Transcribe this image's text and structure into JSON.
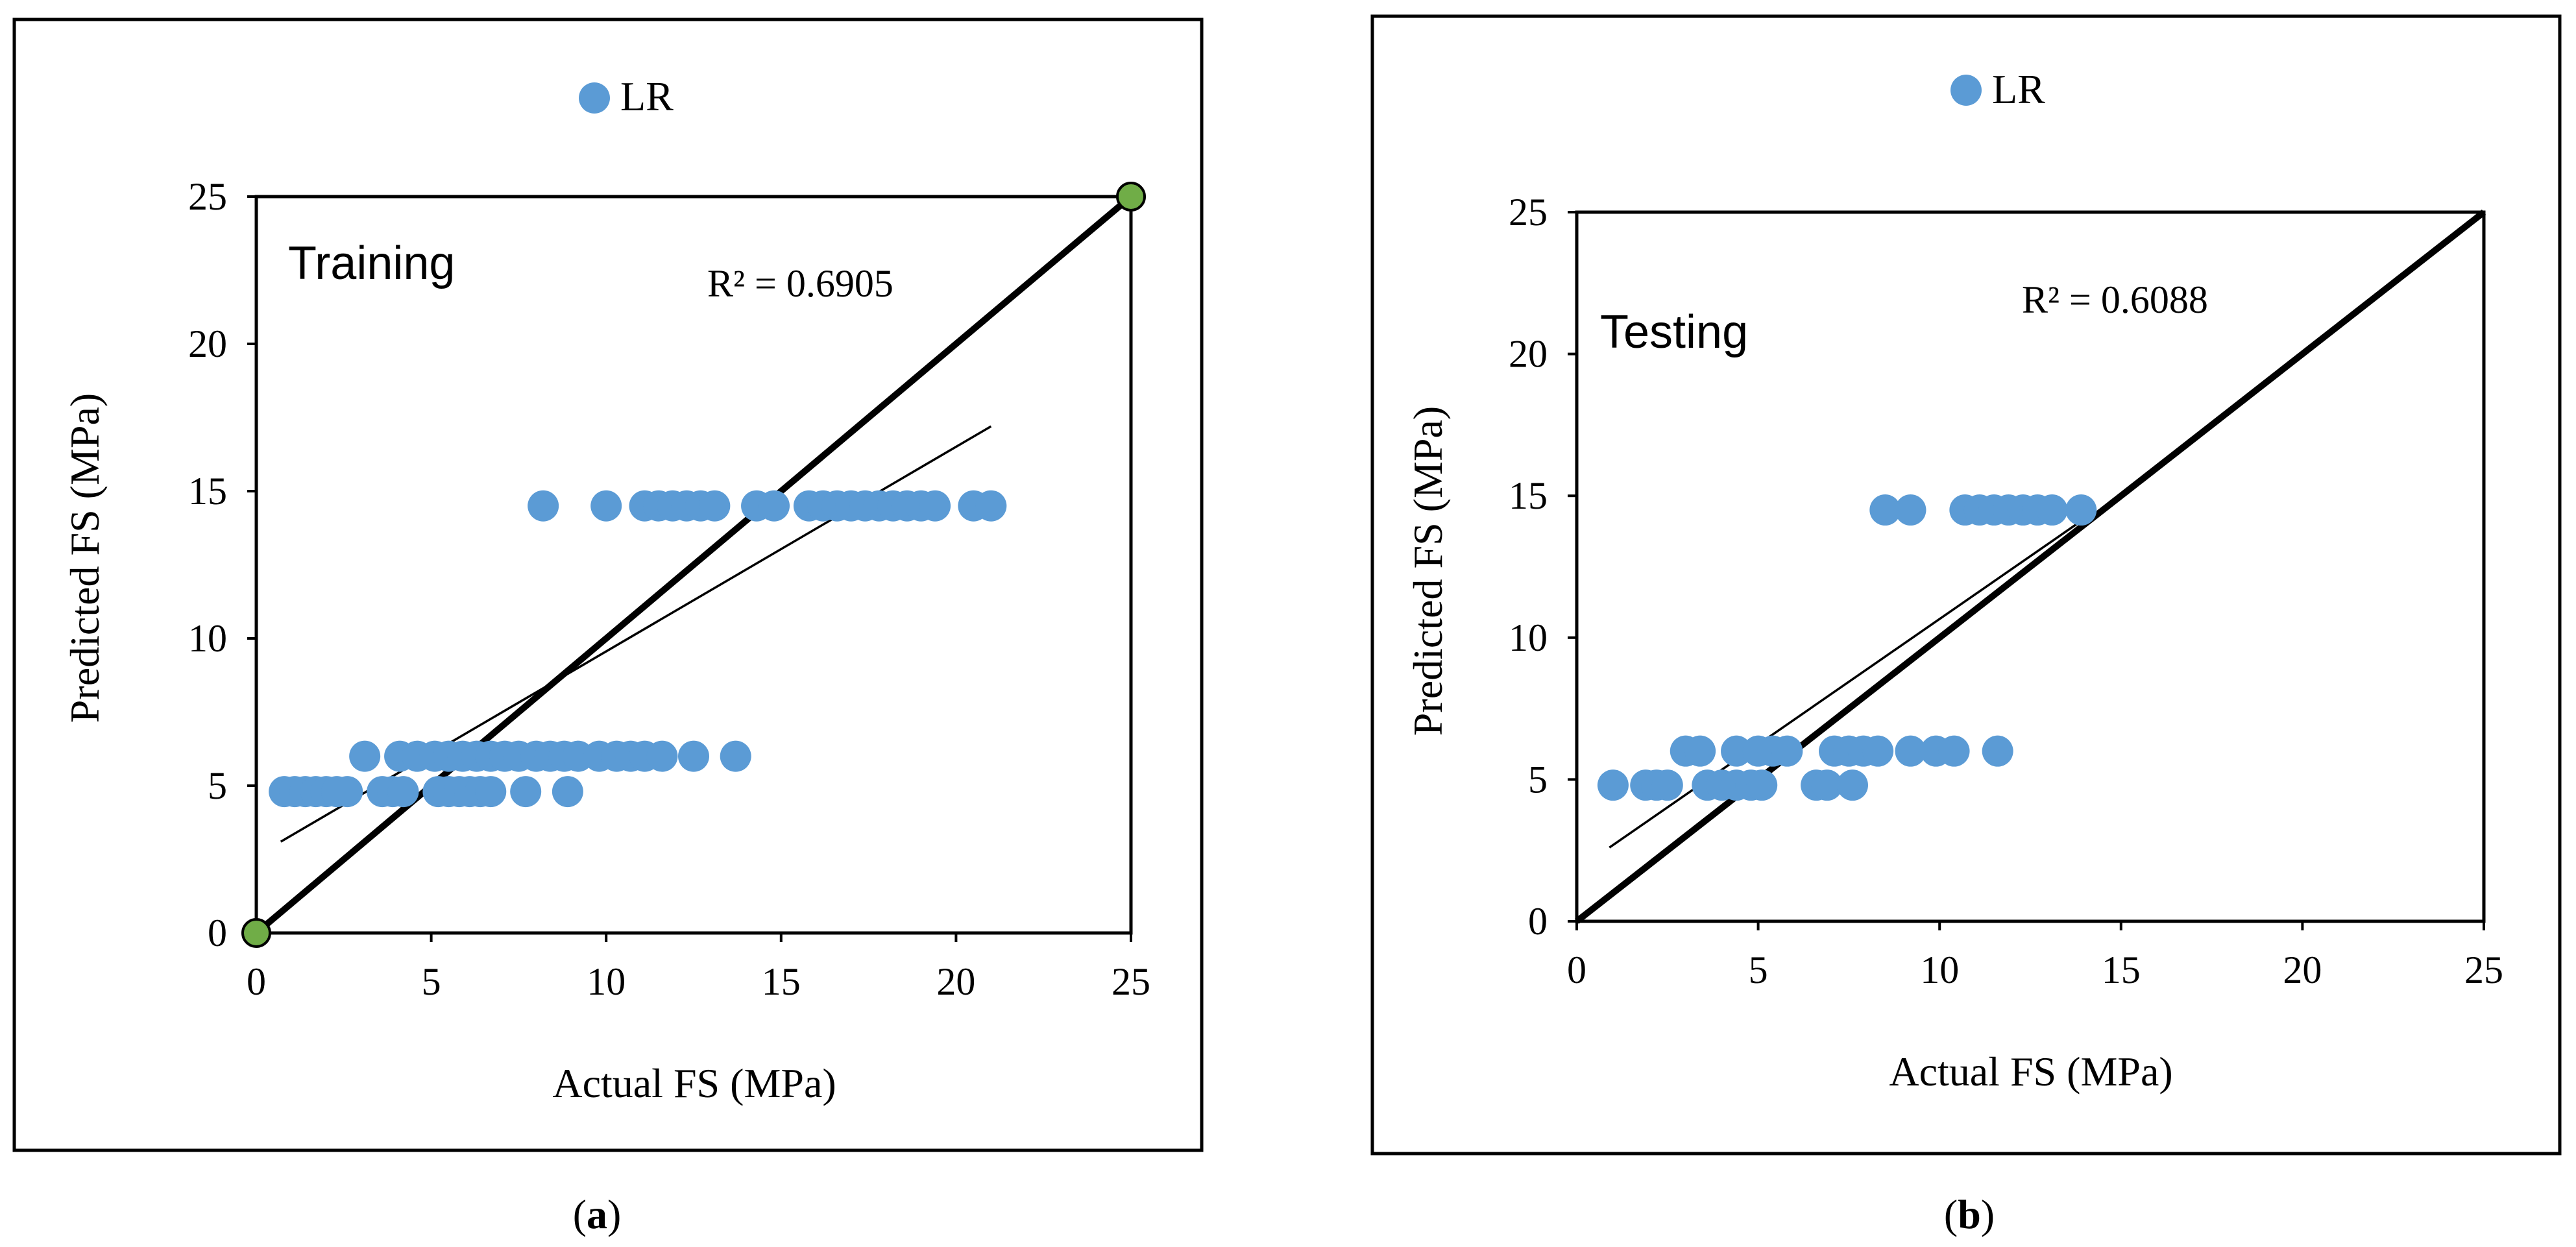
{
  "figure": {
    "colors": {
      "point": "#5b9bd5",
      "axis": "#000000",
      "endpoint": "#70ad47",
      "background": "#ffffff"
    },
    "font_sizes": {
      "tick": 60,
      "axis_label": 64,
      "legend": 64,
      "annotation": 60,
      "region": 72,
      "caption": 64
    }
  },
  "chart_data": [
    {
      "type": "scatter",
      "panel": "a",
      "caption_letter": "a",
      "legend": "LR",
      "region_label": "Training",
      "annotation": "R² = 0.6905",
      "xlabel": "Actual FS (MPa)",
      "ylabel": "Predicted FS (MPa)",
      "xlim": [
        0,
        25
      ],
      "ylim": [
        0,
        25
      ],
      "xticks": [
        "0",
        "5",
        "10",
        "15",
        "20",
        "25"
      ],
      "yticks": [
        "0",
        "5",
        "10",
        "15",
        "20",
        "25"
      ],
      "series": [
        {
          "name": "LR",
          "points": [
            [
              0.8,
              4.8
            ],
            [
              1.1,
              4.8
            ],
            [
              1.4,
              4.8
            ],
            [
              1.7,
              4.8
            ],
            [
              2.0,
              4.8
            ],
            [
              2.3,
              4.8
            ],
            [
              2.6,
              4.8
            ],
            [
              3.6,
              4.8
            ],
            [
              3.9,
              4.8
            ],
            [
              4.2,
              4.8
            ],
            [
              5.2,
              4.8
            ],
            [
              5.5,
              4.8
            ],
            [
              5.8,
              4.8
            ],
            [
              6.1,
              4.8
            ],
            [
              6.4,
              4.8
            ],
            [
              6.7,
              4.8
            ],
            [
              7.7,
              4.8
            ],
            [
              8.9,
              4.8
            ],
            [
              3.1,
              6.0
            ],
            [
              4.1,
              6.0
            ],
            [
              4.6,
              6.0
            ],
            [
              5.1,
              6.0
            ],
            [
              5.5,
              6.0
            ],
            [
              5.9,
              6.0
            ],
            [
              6.3,
              6.0
            ],
            [
              6.7,
              6.0
            ],
            [
              7.1,
              6.0
            ],
            [
              7.5,
              6.0
            ],
            [
              8.0,
              6.0
            ],
            [
              8.4,
              6.0
            ],
            [
              8.8,
              6.0
            ],
            [
              9.2,
              6.0
            ],
            [
              9.8,
              6.0
            ],
            [
              10.3,
              6.0
            ],
            [
              10.7,
              6.0
            ],
            [
              11.1,
              6.0
            ],
            [
              11.6,
              6.0
            ],
            [
              12.5,
              6.0
            ],
            [
              13.7,
              6.0
            ],
            [
              8.2,
              14.5
            ],
            [
              10.0,
              14.5
            ],
            [
              11.1,
              14.5
            ],
            [
              11.5,
              14.5
            ],
            [
              11.9,
              14.5
            ],
            [
              12.3,
              14.5
            ],
            [
              12.7,
              14.5
            ],
            [
              13.1,
              14.5
            ],
            [
              14.3,
              14.5
            ],
            [
              14.8,
              14.5
            ],
            [
              15.8,
              14.5
            ],
            [
              16.2,
              14.5
            ],
            [
              16.6,
              14.5
            ],
            [
              17.0,
              14.5
            ],
            [
              17.4,
              14.5
            ],
            [
              17.8,
              14.5
            ],
            [
              18.2,
              14.5
            ],
            [
              18.6,
              14.5
            ],
            [
              19.0,
              14.5
            ],
            [
              19.4,
              14.5
            ],
            [
              20.5,
              14.5
            ],
            [
              21.0,
              14.5
            ]
          ]
        },
        {
          "name": "Ideal (1:1 line)",
          "x": [
            0,
            25
          ],
          "y": [
            0,
            25
          ]
        },
        {
          "name": "Linear trendline",
          "x": [
            0.7,
            21.0
          ],
          "y": [
            3.1,
            17.2
          ]
        }
      ]
    },
    {
      "type": "scatter",
      "panel": "b",
      "caption_letter": "b",
      "legend": "LR",
      "region_label": "Testing",
      "annotation": "R² = 0.6088",
      "xlabel": "Actual FS (MPa)",
      "ylabel": "Predicted  FS (MPa)",
      "xlim": [
        0,
        25
      ],
      "ylim": [
        0,
        25
      ],
      "xticks": [
        "0",
        "5",
        "10",
        "15",
        "20",
        "25"
      ],
      "yticks": [
        "0",
        "5",
        "10",
        "15",
        "20",
        "25"
      ],
      "series": [
        {
          "name": "LR",
          "points": [
            [
              1.0,
              4.8
            ],
            [
              1.9,
              4.8
            ],
            [
              2.2,
              4.8
            ],
            [
              2.5,
              4.8
            ],
            [
              3.6,
              4.8
            ],
            [
              4.0,
              4.8
            ],
            [
              4.4,
              4.8
            ],
            [
              4.8,
              4.8
            ],
            [
              5.1,
              4.8
            ],
            [
              6.6,
              4.8
            ],
            [
              6.9,
              4.8
            ],
            [
              7.6,
              4.8
            ],
            [
              3.0,
              6.0
            ],
            [
              3.4,
              6.0
            ],
            [
              4.4,
              6.0
            ],
            [
              5.0,
              6.0
            ],
            [
              5.4,
              6.0
            ],
            [
              5.8,
              6.0
            ],
            [
              7.1,
              6.0
            ],
            [
              7.5,
              6.0
            ],
            [
              7.9,
              6.0
            ],
            [
              8.3,
              6.0
            ],
            [
              9.2,
              6.0
            ],
            [
              9.9,
              6.0
            ],
            [
              10.4,
              6.0
            ],
            [
              11.6,
              6.0
            ],
            [
              8.5,
              14.5
            ],
            [
              9.2,
              14.5
            ],
            [
              10.7,
              14.5
            ],
            [
              11.1,
              14.5
            ],
            [
              11.5,
              14.5
            ],
            [
              11.9,
              14.5
            ],
            [
              12.3,
              14.5
            ],
            [
              12.7,
              14.5
            ],
            [
              13.1,
              14.5
            ],
            [
              13.9,
              14.5
            ]
          ]
        },
        {
          "name": "Ideal (1:1 line)",
          "x": [
            0,
            25
          ],
          "y": [
            0,
            25
          ]
        },
        {
          "name": "Linear trendline",
          "x": [
            0.9,
            14.0
          ],
          "y": [
            2.6,
            14.2
          ]
        }
      ]
    }
  ]
}
